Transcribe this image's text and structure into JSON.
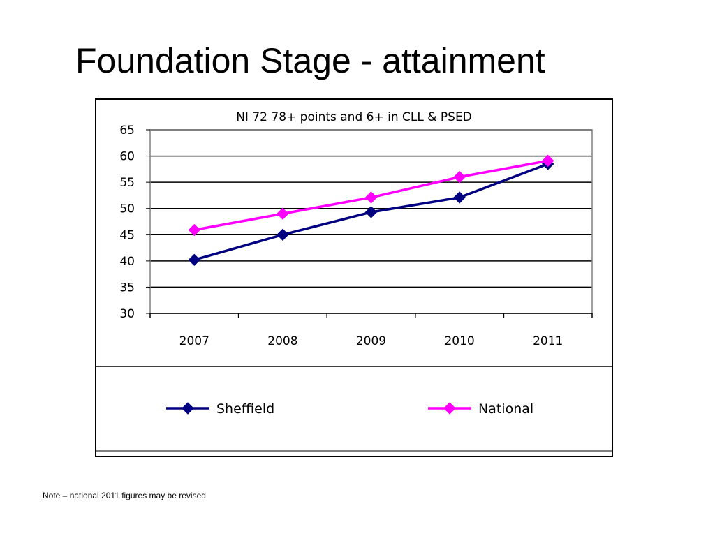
{
  "slide": {
    "title": "Foundation Stage - attainment",
    "note": "Note – national 2011 figures may be revised"
  },
  "chart_data": {
    "type": "line",
    "title": "NI 72 78+ points and 6+ in CLL & PSED",
    "xlabel": "",
    "ylabel": "",
    "categories": [
      "2007",
      "2008",
      "2009",
      "2010",
      "2011"
    ],
    "ylim": [
      30,
      65
    ],
    "yticks": [
      30,
      35,
      40,
      45,
      50,
      55,
      60,
      65
    ],
    "grid": true,
    "legend_position": "bottom",
    "series": [
      {
        "name": "Sheffield",
        "color": "#000080",
        "marker": "diamond",
        "values": [
          40.2,
          45.0,
          49.3,
          52.1,
          58.5
        ]
      },
      {
        "name": "National",
        "color": "#ff00ff",
        "marker": "diamond",
        "values": [
          45.9,
          49.0,
          52.1,
          56.0,
          59.1
        ]
      }
    ]
  }
}
